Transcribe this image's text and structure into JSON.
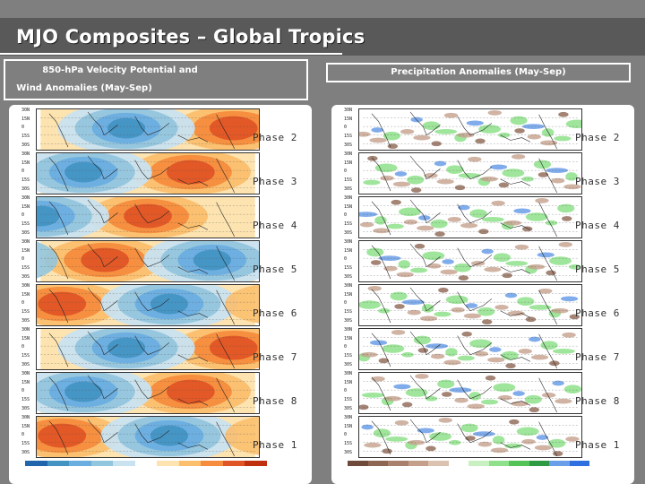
{
  "title": "MJO Composites – Global Tropics",
  "left_header": {
    "line1": "850-hPa Velocity Potential and",
    "line2": "Wind Anomalies (May-Sep)"
  },
  "right_header": "Precipitation Anomalies (May-Sep)",
  "lat_ticks": [
    "30N",
    "15N",
    "0",
    "15S",
    "30S"
  ],
  "phases": [
    "Phase 2",
    "Phase 3",
    "Phase 4",
    "Phase 5",
    "Phase 6",
    "Phase 7",
    "Phase 8",
    "Phase 1"
  ],
  "colors": {
    "velocity_colorbar": [
      "#2166ac",
      "#4393c3",
      "#6aaee0",
      "#92c5de",
      "#c9e2f0",
      "#ffffff",
      "#fde3b0",
      "#fbbf6e",
      "#f68c3d",
      "#e05525",
      "#c0300f"
    ],
    "precip_colorbar": [
      "#6e4a3a",
      "#8c6553",
      "#a8806c",
      "#c4a08c",
      "#dcc2b0",
      "#ffffff",
      "#c8f0c0",
      "#8ee08a",
      "#55c458",
      "#2e9a44",
      "#6a9ee8",
      "#2f6fe0"
    ]
  }
}
